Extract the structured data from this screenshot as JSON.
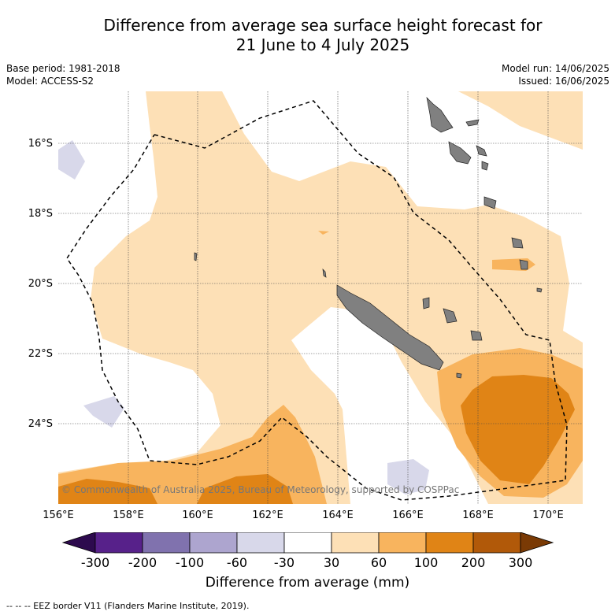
{
  "title": {
    "line1": "Difference from average sea surface height forecast for",
    "line2": "21 June to 4 July 2025"
  },
  "meta_left": {
    "base_period": "Base period: 1981-2018",
    "model": "Model: ACCESS-S2"
  },
  "meta_right": {
    "model_run": "Model run: 14/06/2025",
    "issued": "Issued: 16/06/2025"
  },
  "lat_labels": [
    "16°S",
    "18°S",
    "20°S",
    "22°S",
    "24°S"
  ],
  "lon_labels": [
    "156°E",
    "158°E",
    "160°E",
    "162°E",
    "164°E",
    "166°E",
    "168°E",
    "170°E"
  ],
  "copyright": "© Commonwealth of Australia 2025, Bureau of Meteorology, supported by COSPPac",
  "colorbar": {
    "ticks": [
      "-300",
      "-200",
      "-100",
      "-60",
      "-30",
      "30",
      "60",
      "100",
      "200",
      "300"
    ],
    "colors": {
      "under": "#2d0a4e",
      "bins": [
        "#57218a",
        "#8072ae",
        "#ada5cf",
        "#d8d8ea",
        "#ffffff",
        "#fde0b6",
        "#f8b45e",
        "#e08416",
        "#b15909"
      ],
      "over": "#7a3a05"
    },
    "label": "Difference from average (mm)"
  },
  "legend": {
    "eez": "-- -- -- EEZ border V11 (Flanders Marine Institute, 2019)."
  },
  "land_color": "#808080"
}
